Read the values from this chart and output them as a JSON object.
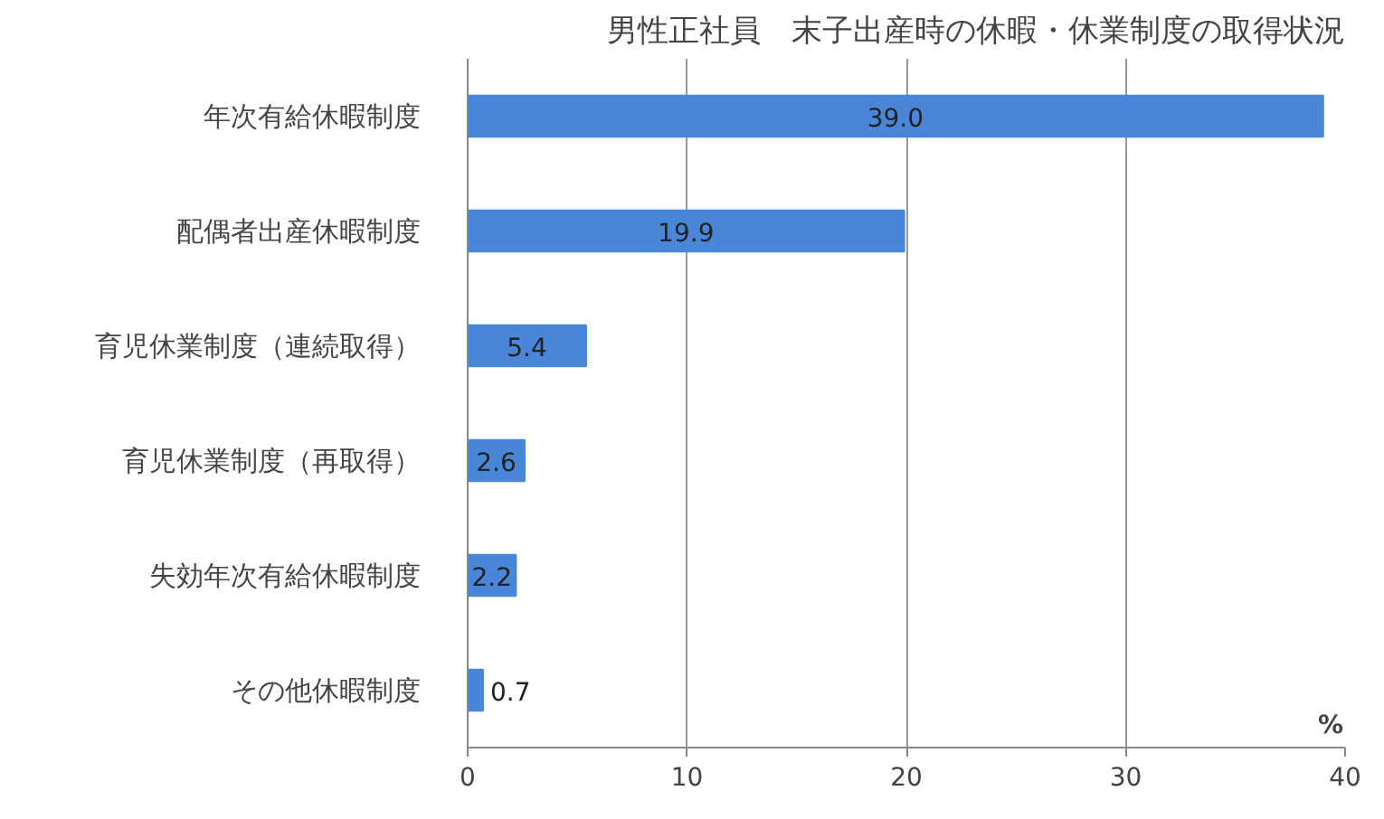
{
  "chart_data": {
    "type": "bar",
    "orientation": "horizontal",
    "title": "男性正社員　末子出産時の休暇・休業制度の取得状況",
    "xlabel": "%",
    "categories": [
      "年次有給休暇制度",
      "配偶者出産休暇制度",
      "育児休業制度（連続取得）",
      "育児休業制度（再取得）",
      "失効年次有給休暇制度",
      "その他休暇制度"
    ],
    "values": [
      39.0,
      19.9,
      5.4,
      2.6,
      2.2,
      0.7
    ],
    "value_labels": [
      "39.0",
      "19.9",
      "5.4",
      "2.6",
      "2.2",
      "0.7"
    ],
    "color": "#4a86d8",
    "xlim": [
      0,
      40
    ],
    "xticks": [
      0,
      10,
      20,
      30,
      40
    ],
    "grid": "x"
  }
}
